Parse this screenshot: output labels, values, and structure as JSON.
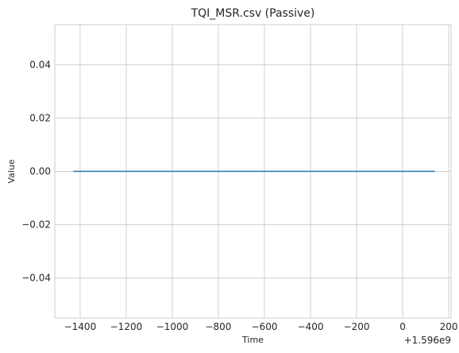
{
  "chart_data": {
    "type": "line",
    "title": "TQI_MSR.csv (Passive)",
    "xlabel": "Time",
    "ylabel": "Value",
    "x_offset_label": "+1.596e9",
    "xlim": [
      -1510,
      210
    ],
    "ylim": [
      -0.055,
      0.055
    ],
    "xticks": [
      -1400,
      -1200,
      -1000,
      -800,
      -600,
      -400,
      -200,
      0,
      200
    ],
    "xtick_labels": [
      "−1400",
      "−1200",
      "−1000",
      "−800",
      "−600",
      "−400",
      "−200",
      "0",
      "200"
    ],
    "yticks": [
      0.04,
      0.02,
      0.0,
      -0.02,
      -0.04
    ],
    "ytick_labels": [
      "0.04",
      "0.02",
      "0.00",
      "−0.02",
      "−0.04"
    ],
    "grid": true,
    "colors": {
      "line": "#1f77b4",
      "grid": "#d0d0d0",
      "spine": "#cccccc",
      "text": "#262626"
    },
    "series": [
      {
        "x": [
          -1430,
          140
        ],
        "y": [
          0,
          0
        ]
      }
    ]
  }
}
